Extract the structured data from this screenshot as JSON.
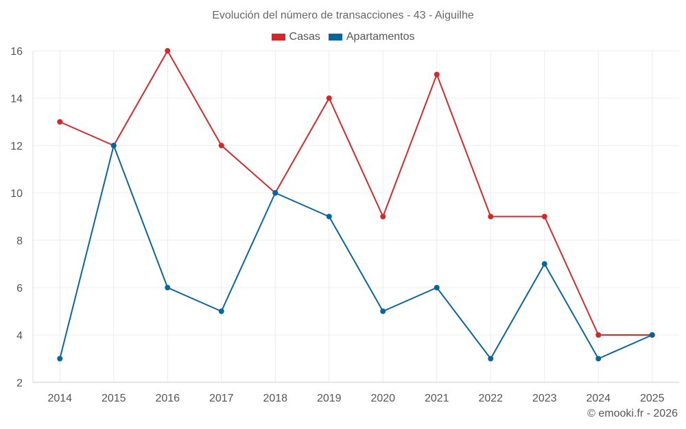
{
  "chart_data": {
    "type": "line",
    "title": "Evolución del número de transacciones - 43 - Aiguilhe",
    "categories": [
      "2014",
      "2015",
      "2016",
      "2017",
      "2018",
      "2019",
      "2020",
      "2021",
      "2022",
      "2023",
      "2024",
      "2025"
    ],
    "series": [
      {
        "name": "Casas",
        "color": "#d62728",
        "values": [
          13,
          12,
          16,
          12,
          10,
          14,
          9,
          15,
          9,
          9,
          4,
          4
        ]
      },
      {
        "name": "Apartamentos",
        "color": "#08649c",
        "values": [
          3,
          12,
          6,
          5,
          10,
          9,
          5,
          6,
          3,
          7,
          3,
          4
        ]
      }
    ],
    "ylim": [
      2,
      16
    ],
    "yticks": [
      "2",
      "4",
      "6",
      "8",
      "10",
      "12",
      "14",
      "16"
    ],
    "xlabel": "",
    "ylabel": "",
    "grid": true,
    "legend_position": "top-center"
  },
  "credit": "© emooki.fr - 2026"
}
